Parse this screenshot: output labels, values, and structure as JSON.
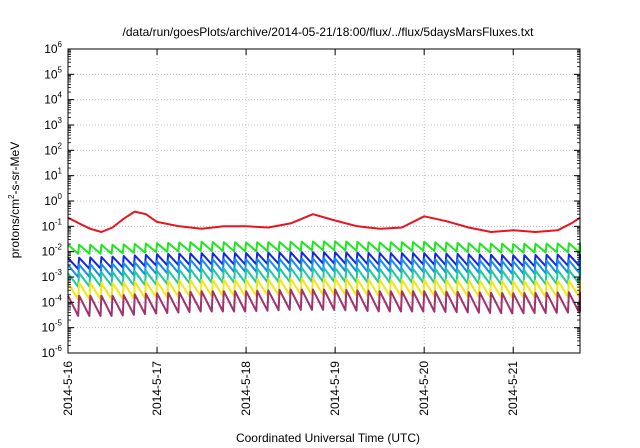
{
  "chart_data": {
    "type": "line",
    "title": "/data/run/goesPlots/archive/2014-05-21/18:00/flux/../flux/5daysMarsFluxes.txt",
    "xlabel": "Coordinated Universal Time (UTC)",
    "ylabel": "protons/cm2-s-sr-MeV",
    "ylabel_parts": {
      "before": "protons/cm",
      "superscript": "2",
      "after": "-s-sr-MeV"
    },
    "y_scale": "log",
    "ylim": [
      1e-06,
      1000000.0
    ],
    "xlim": [
      "2014-05-16T00:00",
      "2014-05-21T18:00"
    ],
    "grid": true,
    "legend": "none",
    "x_ticks": [
      "2014-5-16",
      "2014-5-17",
      "2014-5-18",
      "2014-5-19",
      "2014-5-20",
      "2014-5-21"
    ],
    "y_ticks": [
      {
        "base": "10",
        "exp": "-6"
      },
      {
        "base": "10",
        "exp": "-5"
      },
      {
        "base": "10",
        "exp": "-4"
      },
      {
        "base": "10",
        "exp": "-3"
      },
      {
        "base": "10",
        "exp": "-2"
      },
      {
        "base": "10",
        "exp": "-1"
      },
      {
        "base": "10",
        "exp": "0"
      },
      {
        "base": "10",
        "exp": "1"
      },
      {
        "base": "10",
        "exp": "2"
      },
      {
        "base": "10",
        "exp": "3"
      },
      {
        "base": "10",
        "exp": "4"
      },
      {
        "base": "10",
        "exp": "5"
      },
      {
        "base": "10",
        "exp": "6"
      }
    ],
    "sawtooth_period_hours": 3,
    "series": [
      {
        "color": "#e8141e",
        "points": [
          [
            "2014-05-16T00:00",
            0.22
          ],
          [
            "2014-05-16T03:00",
            0.13
          ],
          [
            "2014-05-16T06:00",
            0.08
          ],
          [
            "2014-05-16T09:00",
            0.06
          ],
          [
            "2014-05-16T12:00",
            0.09
          ],
          [
            "2014-05-16T15:00",
            0.2
          ],
          [
            "2014-05-16T18:00",
            0.38
          ],
          [
            "2014-05-16T21:00",
            0.3
          ],
          [
            "2014-05-17T00:00",
            0.15
          ],
          [
            "2014-05-17T06:00",
            0.1
          ],
          [
            "2014-05-17T12:00",
            0.08
          ],
          [
            "2014-05-17T18:00",
            0.1
          ],
          [
            "2014-05-18T00:00",
            0.1
          ],
          [
            "2014-05-18T06:00",
            0.09
          ],
          [
            "2014-05-18T12:00",
            0.13
          ],
          [
            "2014-05-18T18:00",
            0.3
          ],
          [
            "2014-05-19T00:00",
            0.17
          ],
          [
            "2014-05-19T06:00",
            0.1
          ],
          [
            "2014-05-19T12:00",
            0.08
          ],
          [
            "2014-05-19T18:00",
            0.09
          ],
          [
            "2014-05-20T00:00",
            0.25
          ],
          [
            "2014-05-20T06:00",
            0.16
          ],
          [
            "2014-05-20T12:00",
            0.09
          ],
          [
            "2014-05-20T18:00",
            0.06
          ],
          [
            "2014-05-21T00:00",
            0.07
          ],
          [
            "2014-05-21T06:00",
            0.06
          ],
          [
            "2014-05-21T12:00",
            0.07
          ],
          [
            "2014-05-21T16:00",
            0.14
          ],
          [
            "2014-05-21T18:00",
            0.22
          ]
        ]
      },
      {
        "color": "#1ee61e",
        "points": [
          [
            "2014-05-16T00:00",
            0.013
          ],
          [
            "2014-05-16T12:00",
            0.013
          ],
          [
            "2014-05-17T00:00",
            0.015
          ],
          [
            "2014-05-17T12:00",
            0.017
          ],
          [
            "2014-05-18T00:00",
            0.016
          ],
          [
            "2014-05-18T12:00",
            0.017
          ],
          [
            "2014-05-19T00:00",
            0.018
          ],
          [
            "2014-05-19T12:00",
            0.016
          ],
          [
            "2014-05-20T00:00",
            0.017
          ],
          [
            "2014-05-20T12:00",
            0.015
          ],
          [
            "2014-05-21T00:00",
            0.014
          ],
          [
            "2014-05-21T18:00",
            0.015
          ]
        ]
      },
      {
        "color": "#1428dc",
        "points": [
          [
            "2014-05-16T00:00",
            0.0035
          ],
          [
            "2014-05-16T12:00",
            0.004
          ],
          [
            "2014-05-17T00:00",
            0.005
          ],
          [
            "2014-05-17T12:00",
            0.0055
          ],
          [
            "2014-05-18T00:00",
            0.0055
          ],
          [
            "2014-05-18T12:00",
            0.006
          ],
          [
            "2014-05-19T00:00",
            0.006
          ],
          [
            "2014-05-19T12:00",
            0.0055
          ],
          [
            "2014-05-20T00:00",
            0.0055
          ],
          [
            "2014-05-20T12:00",
            0.005
          ],
          [
            "2014-05-21T00:00",
            0.0045
          ],
          [
            "2014-05-21T18:00",
            0.005
          ]
        ]
      },
      {
        "color": "#148cf0",
        "points": [
          [
            "2014-05-16T00:00",
            0.0018
          ],
          [
            "2014-05-16T12:00",
            0.002
          ],
          [
            "2014-05-17T00:00",
            0.0025
          ],
          [
            "2014-05-17T12:00",
            0.003
          ],
          [
            "2014-05-18T00:00",
            0.003
          ],
          [
            "2014-05-18T12:00",
            0.0032
          ],
          [
            "2014-05-19T00:00",
            0.0032
          ],
          [
            "2014-05-19T12:00",
            0.003
          ],
          [
            "2014-05-20T00:00",
            0.003
          ],
          [
            "2014-05-20T12:00",
            0.0028
          ],
          [
            "2014-05-21T00:00",
            0.0025
          ],
          [
            "2014-05-21T18:00",
            0.0028
          ]
        ]
      },
      {
        "color": "#1ec8a0",
        "points": [
          [
            "2014-05-16T00:00",
            0.0008
          ],
          [
            "2014-05-16T12:00",
            0.0009
          ],
          [
            "2014-05-17T00:00",
            0.001
          ],
          [
            "2014-05-17T12:00",
            0.0012
          ],
          [
            "2014-05-18T00:00",
            0.0012
          ],
          [
            "2014-05-18T12:00",
            0.0013
          ],
          [
            "2014-05-19T00:00",
            0.0013
          ],
          [
            "2014-05-19T12:00",
            0.0012
          ],
          [
            "2014-05-20T00:00",
            0.0012
          ],
          [
            "2014-05-20T12:00",
            0.0011
          ],
          [
            "2014-05-21T00:00",
            0.001
          ],
          [
            "2014-05-21T18:00",
            0.0011
          ]
        ]
      },
      {
        "color": "#f0e614",
        "points": [
          [
            "2014-05-16T00:00",
            0.0003
          ],
          [
            "2014-05-16T12:00",
            0.0003
          ],
          [
            "2014-05-17T00:00",
            0.00035
          ],
          [
            "2014-05-17T12:00",
            0.0004
          ],
          [
            "2014-05-18T00:00",
            0.0004
          ],
          [
            "2014-05-18T12:00",
            0.00045
          ],
          [
            "2014-05-19T00:00",
            0.00045
          ],
          [
            "2014-05-19T12:00",
            0.0004
          ],
          [
            "2014-05-20T00:00",
            0.0004
          ],
          [
            "2014-05-20T12:00",
            0.00038
          ],
          [
            "2014-05-21T00:00",
            0.00035
          ],
          [
            "2014-05-21T18:00",
            0.00038
          ]
        ]
      },
      {
        "color": "#a0326e",
        "points": [
          [
            "2014-05-16T00:00",
            8e-05
          ],
          [
            "2014-05-16T12:00",
            8e-05
          ],
          [
            "2014-05-17T00:00",
            0.0001
          ],
          [
            "2014-05-17T12:00",
            0.00012
          ],
          [
            "2014-05-18T00:00",
            0.00012
          ],
          [
            "2014-05-18T12:00",
            0.00014
          ],
          [
            "2014-05-19T00:00",
            0.00014
          ],
          [
            "2014-05-19T12:00",
            0.00012
          ],
          [
            "2014-05-20T00:00",
            0.00012
          ],
          [
            "2014-05-20T12:00",
            0.00011
          ],
          [
            "2014-05-21T00:00",
            0.0001
          ],
          [
            "2014-05-21T18:00",
            0.00011
          ]
        ]
      }
    ]
  }
}
